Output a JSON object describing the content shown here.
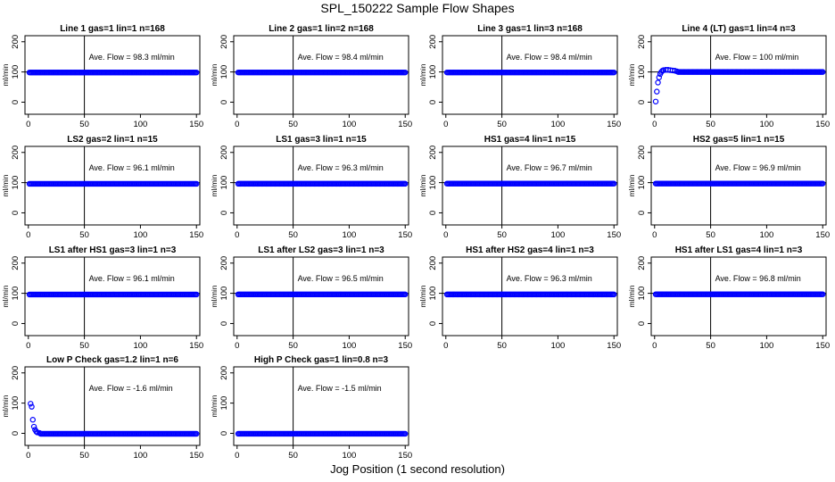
{
  "title": "SPL_150222  Sample Flow Shapes",
  "xlabel": "Jog Position (1 second resolution)",
  "colors": {
    "points": "#0000ff",
    "axes": "#000000"
  },
  "chart_data": [
    {
      "type": "scatter",
      "title": "Line 1 gas=1 lin=1 n=168",
      "ylabel": "ml/min",
      "annotation": "Ave. Flow = 98.3  ml/min",
      "x_ticks": [
        0,
        50,
        100,
        150
      ],
      "y_ticks": [
        0,
        100,
        200
      ],
      "xlim": [
        -3,
        153
      ],
      "ylim": [
        -40,
        220
      ],
      "vline": 50,
      "hline": 100,
      "series": [
        {
          "x": [
            1,
            150
          ],
          "y": [
            98.3,
            98.3
          ],
          "shape": "flat"
        }
      ]
    },
    {
      "type": "scatter",
      "title": "Line 2 gas=1 lin=2 n=168",
      "ylabel": "ml/min",
      "annotation": "Ave. Flow = 98.4  ml/min",
      "x_ticks": [
        0,
        50,
        100,
        150
      ],
      "y_ticks": [
        0,
        100,
        200
      ],
      "xlim": [
        -3,
        153
      ],
      "ylim": [
        -40,
        220
      ],
      "vline": 50,
      "hline": 100,
      "series": [
        {
          "x": [
            1,
            150
          ],
          "y": [
            98.4,
            98.4
          ],
          "shape": "flat"
        }
      ]
    },
    {
      "type": "scatter",
      "title": "Line 3 gas=1 lin=3 n=168",
      "ylabel": "ml/min",
      "annotation": "Ave. Flow = 98.4  ml/min",
      "x_ticks": [
        0,
        50,
        100,
        150
      ],
      "y_ticks": [
        0,
        100,
        200
      ],
      "xlim": [
        -3,
        153
      ],
      "ylim": [
        -40,
        220
      ],
      "vline": 50,
      "hline": 100,
      "series": [
        {
          "x": [
            1,
            150
          ],
          "y": [
            98.4,
            98.4
          ],
          "shape": "flat"
        }
      ]
    },
    {
      "type": "scatter",
      "title": "Line 4 (LT) gas=1 lin=4 n=3",
      "ylabel": "ml/min",
      "annotation": "Ave. Flow = 100  ml/min",
      "x_ticks": [
        0,
        50,
        100,
        150
      ],
      "y_ticks": [
        0,
        100,
        200
      ],
      "xlim": [
        -3,
        153
      ],
      "ylim": [
        -40,
        220
      ],
      "vline": 50,
      "hline": 100,
      "series": [
        {
          "x": [
            1,
            2,
            3,
            4,
            5,
            6,
            7,
            8,
            10,
            12,
            14,
            16,
            18,
            20,
            150
          ],
          "y": [
            2,
            35,
            65,
            82,
            93,
            100,
            104,
            106,
            107,
            107,
            106,
            105,
            104,
            102,
            100
          ],
          "shape": "rise"
        }
      ]
    },
    {
      "type": "scatter",
      "title": "LS2 gas=2 lin=1 n=15",
      "ylabel": "ml/min",
      "annotation": "Ave. Flow = 96.1  ml/min",
      "x_ticks": [
        0,
        50,
        100,
        150
      ],
      "y_ticks": [
        0,
        100,
        200
      ],
      "xlim": [
        -3,
        153
      ],
      "ylim": [
        -40,
        220
      ],
      "vline": 50,
      "hline": 100,
      "series": [
        {
          "x": [
            1,
            150
          ],
          "y": [
            96.1,
            96.1
          ],
          "shape": "flat"
        }
      ]
    },
    {
      "type": "scatter",
      "title": "LS1 gas=3 lin=1 n=15",
      "ylabel": "ml/min",
      "annotation": "Ave. Flow = 96.3  ml/min",
      "x_ticks": [
        0,
        50,
        100,
        150
      ],
      "y_ticks": [
        0,
        100,
        200
      ],
      "xlim": [
        -3,
        153
      ],
      "ylim": [
        -40,
        220
      ],
      "vline": 50,
      "hline": 100,
      "series": [
        {
          "x": [
            1,
            150
          ],
          "y": [
            96.3,
            96.3
          ],
          "shape": "flat"
        }
      ]
    },
    {
      "type": "scatter",
      "title": "HS1 gas=4 lin=1 n=15",
      "ylabel": "ml/min",
      "annotation": "Ave. Flow = 96.7  ml/min",
      "x_ticks": [
        0,
        50,
        100,
        150
      ],
      "y_ticks": [
        0,
        100,
        200
      ],
      "xlim": [
        -3,
        153
      ],
      "ylim": [
        -40,
        220
      ],
      "vline": 50,
      "hline": 100,
      "series": [
        {
          "x": [
            1,
            150
          ],
          "y": [
            96.7,
            96.7
          ],
          "shape": "flat"
        }
      ]
    },
    {
      "type": "scatter",
      "title": "HS2 gas=5 lin=1 n=15",
      "ylabel": "ml/min",
      "annotation": "Ave. Flow = 96.9  ml/min",
      "x_ticks": [
        0,
        50,
        100,
        150
      ],
      "y_ticks": [
        0,
        100,
        200
      ],
      "xlim": [
        -3,
        153
      ],
      "ylim": [
        -40,
        220
      ],
      "vline": 50,
      "hline": 100,
      "series": [
        {
          "x": [
            1,
            150
          ],
          "y": [
            96.9,
            96.9
          ],
          "shape": "flat"
        }
      ]
    },
    {
      "type": "scatter",
      "title": "LS1 after HS1 gas=3 lin=1 n=3",
      "ylabel": "ml/min",
      "annotation": "Ave. Flow = 96.1  ml/min",
      "x_ticks": [
        0,
        50,
        100,
        150
      ],
      "y_ticks": [
        0,
        100,
        200
      ],
      "xlim": [
        -3,
        153
      ],
      "ylim": [
        -40,
        220
      ],
      "vline": 50,
      "hline": 100,
      "series": [
        {
          "x": [
            1,
            150
          ],
          "y": [
            96.1,
            96.1
          ],
          "shape": "flat"
        }
      ]
    },
    {
      "type": "scatter",
      "title": "LS1 after LS2 gas=3 lin=1 n=3",
      "ylabel": "ml/min",
      "annotation": "Ave. Flow = 96.5  ml/min",
      "x_ticks": [
        0,
        50,
        100,
        150
      ],
      "y_ticks": [
        0,
        100,
        200
      ],
      "xlim": [
        -3,
        153
      ],
      "ylim": [
        -40,
        220
      ],
      "vline": 50,
      "hline": 100,
      "series": [
        {
          "x": [
            1,
            150
          ],
          "y": [
            96.5,
            96.5
          ],
          "shape": "flat"
        }
      ]
    },
    {
      "type": "scatter",
      "title": "HS1 after HS2 gas=4 lin=1 n=3",
      "ylabel": "ml/min",
      "annotation": "Ave. Flow = 96.3  ml/min",
      "x_ticks": [
        0,
        50,
        100,
        150
      ],
      "y_ticks": [
        0,
        100,
        200
      ],
      "xlim": [
        -3,
        153
      ],
      "ylim": [
        -40,
        220
      ],
      "vline": 50,
      "hline": 100,
      "series": [
        {
          "x": [
            1,
            150
          ],
          "y": [
            96.3,
            96.3
          ],
          "shape": "flat"
        }
      ]
    },
    {
      "type": "scatter",
      "title": "HS1 after LS1 gas=4 lin=1 n=3",
      "ylabel": "ml/min",
      "annotation": "Ave. Flow = 96.8  ml/min",
      "x_ticks": [
        0,
        50,
        100,
        150
      ],
      "y_ticks": [
        0,
        100,
        200
      ],
      "xlim": [
        -3,
        153
      ],
      "ylim": [
        -40,
        220
      ],
      "vline": 50,
      "hline": 100,
      "series": [
        {
          "x": [
            1,
            150
          ],
          "y": [
            96.8,
            96.8
          ],
          "shape": "flat"
        }
      ]
    },
    {
      "type": "scatter",
      "title": "Low P Check gas=1.2 lin=1 n=6",
      "ylabel": "ml/min",
      "annotation": "Ave. Flow = -1.6  ml/min",
      "x_ticks": [
        0,
        50,
        100,
        150
      ],
      "y_ticks": [
        0,
        100,
        200
      ],
      "xlim": [
        -3,
        153
      ],
      "ylim": [
        -40,
        220
      ],
      "vline": 50,
      "hline": null,
      "series": [
        {
          "x": [
            2,
            3,
            4,
            5,
            6,
            7,
            8,
            10,
            150
          ],
          "y": [
            98,
            88,
            45,
            22,
            12,
            6,
            3,
            1,
            -1.6
          ],
          "shape": "decay"
        }
      ]
    },
    {
      "type": "scatter",
      "title": "High P Check gas=1 lin=0.8 n=3",
      "ylabel": "ml/min",
      "annotation": "Ave. Flow = -1.5  ml/min",
      "x_ticks": [
        0,
        50,
        100,
        150
      ],
      "y_ticks": [
        0,
        100,
        200
      ],
      "xlim": [
        -3,
        153
      ],
      "ylim": [
        -40,
        220
      ],
      "vline": 50,
      "hline": null,
      "series": [
        {
          "x": [
            1,
            150
          ],
          "y": [
            -1.5,
            -1.5
          ],
          "shape": "flat"
        }
      ]
    }
  ]
}
